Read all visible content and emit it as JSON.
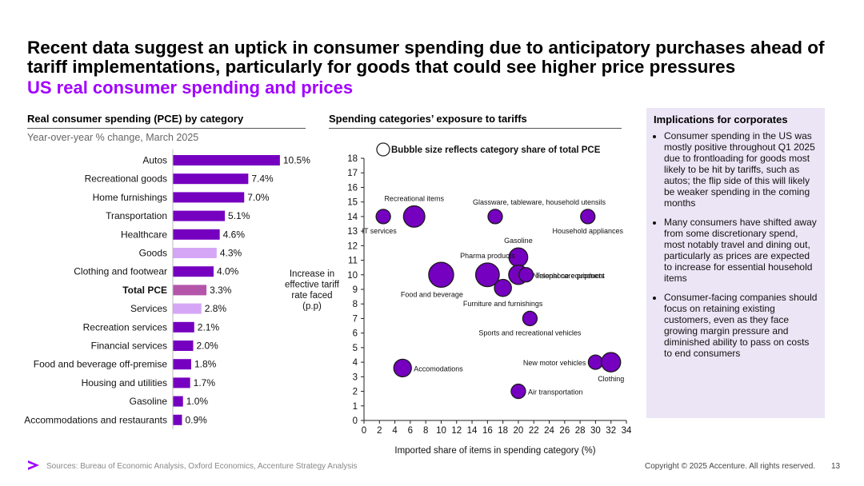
{
  "header": {
    "title": "Recent data suggest an uptick in consumer spending due to anticipatory purchases ahead of tariff implementations, particularly for goods that could see higher price pressures",
    "subtitle": "US real consumer spending and prices"
  },
  "colors": {
    "accent": "#a100ff",
    "bar_dark": "#7500c0",
    "bar_light": "#d5a6f5",
    "bar_total": "#b455aa",
    "panel_bg": "#ece5f5"
  },
  "left_panel": {
    "heading": "Real consumer spending (PCE) by category",
    "note": "Year-over-year % change, March 2025"
  },
  "middle_panel": {
    "heading": "Spending categories’ exposure to tariffs"
  },
  "implications": {
    "heading": "Implications for corporates",
    "bullets": [
      "Consumer spending in the US was mostly positive throughout Q1 2025 due to frontloading for goods most likely to be hit by tariffs, such as autos; the flip side of this will likely be weaker spending in the coming months",
      "Many consumers have shifted away from some discretionary spend, most notably travel and dining out, particularly as prices are expected to increase for essential household items",
      "Consumer-facing companies should focus on retaining existing customers, even as they face growing margin pressure and diminished ability to pass on costs to end consumers"
    ]
  },
  "footer": {
    "sources": "Sources: Bureau of Economic Analysis, Oxford Economics, Accenture Strategy Analysis",
    "copyright": "Copyright © 2025 Accenture. All rights reserved.",
    "page": "13"
  },
  "chart_data": [
    {
      "type": "bar",
      "orientation": "horizontal",
      "title": "Real consumer spending (PCE) by category",
      "subtitle": "Year-over-year % change, March 2025",
      "categories": [
        "Autos",
        "Recreational goods",
        "Home furnishings",
        "Transportation",
        "Healthcare",
        "Goods",
        "Clothing and footwear",
        "Total PCE",
        "Services",
        "Recreation services",
        "Financial services",
        "Food and beverage off-premise",
        "Housing and utilities",
        "Gasoline",
        "Accommodations and restaurants"
      ],
      "values": [
        10.5,
        7.4,
        7.0,
        5.1,
        4.6,
        4.3,
        4.0,
        3.3,
        2.8,
        2.1,
        2.0,
        1.8,
        1.7,
        1.0,
        0.9
      ],
      "labels": [
        "10.5%",
        "7.4%",
        "7.0%",
        "5.1%",
        "4.6%",
        "4.3%",
        "4.0%",
        "3.3%",
        "2.8%",
        "2.1%",
        "2.0%",
        "1.8%",
        "1.7%",
        "1.0%",
        "0.9%"
      ],
      "styles": [
        "dark",
        "dark",
        "dark",
        "dark",
        "dark",
        "light",
        "dark",
        "total",
        "light",
        "dark",
        "dark",
        "dark",
        "dark",
        "dark",
        "dark"
      ],
      "xlim": [
        0,
        11
      ]
    },
    {
      "type": "scatter",
      "subtype": "bubble",
      "title": "Spending categories’ exposure to tariffs",
      "legend": "Bubble size reflects category share of total PCE",
      "xlabel": "Imported share of items in spending category (%)",
      "ylabel": "Increase in effective tariff rate faced (p.p)",
      "xlim": [
        0,
        34
      ],
      "ylim": [
        0,
        18
      ],
      "xticks": [
        0,
        2,
        4,
        6,
        8,
        10,
        12,
        14,
        16,
        18,
        20,
        22,
        24,
        26,
        28,
        30,
        32,
        34
      ],
      "yticks": [
        0,
        1,
        2,
        3,
        4,
        5,
        6,
        7,
        8,
        9,
        10,
        11,
        12,
        13,
        14,
        15,
        16,
        17,
        18
      ],
      "points": [
        {
          "label": "IT services",
          "x": 2.5,
          "y": 14.0,
          "size": 1.0,
          "anchor": "below-left"
        },
        {
          "label": "Recreational items",
          "x": 6.5,
          "y": 14.0,
          "size": 2.2,
          "anchor": "above"
        },
        {
          "label": "Glassware, tableware, household utensils",
          "x": 17.0,
          "y": 14.0,
          "size": 1.0,
          "anchor": "above-right"
        },
        {
          "label": "Household appliances",
          "x": 29.0,
          "y": 14.0,
          "size": 1.0,
          "anchor": "below"
        },
        {
          "label": "Gasoline",
          "x": 20.0,
          "y": 11.2,
          "size": 1.7,
          "anchor": "above"
        },
        {
          "label": "Pharma products",
          "x": 16.0,
          "y": 10.0,
          "size": 2.7,
          "anchor": "above"
        },
        {
          "label": "Personal care products",
          "x": 20.0,
          "y": 10.0,
          "size": 1.8,
          "anchor": "right"
        },
        {
          "label": "Telephone equipment",
          "x": 21.0,
          "y": 10.0,
          "size": 1.0,
          "anchor": "right"
        },
        {
          "label": "Food and beverage",
          "x": 10.0,
          "y": 10.0,
          "size": 3.0,
          "anchor": "below-left"
        },
        {
          "label": "Furniture and furnishings",
          "x": 18.0,
          "y": 9.1,
          "size": 1.4,
          "anchor": "below"
        },
        {
          "label": "Sports and recreational vehicles",
          "x": 21.5,
          "y": 7.0,
          "size": 1.0,
          "anchor": "below"
        },
        {
          "label": "New motor vehicles",
          "x": 30.0,
          "y": 4.0,
          "size": 1.0,
          "anchor": "left"
        },
        {
          "label": "Clothing",
          "x": 32.0,
          "y": 4.0,
          "size": 1.8,
          "anchor": "below"
        },
        {
          "label": "Accomodations",
          "x": 5.0,
          "y": 3.6,
          "size": 1.5,
          "anchor": "right"
        },
        {
          "label": "Air transportation",
          "x": 20.0,
          "y": 2.0,
          "size": 1.0,
          "anchor": "right"
        }
      ]
    }
  ]
}
